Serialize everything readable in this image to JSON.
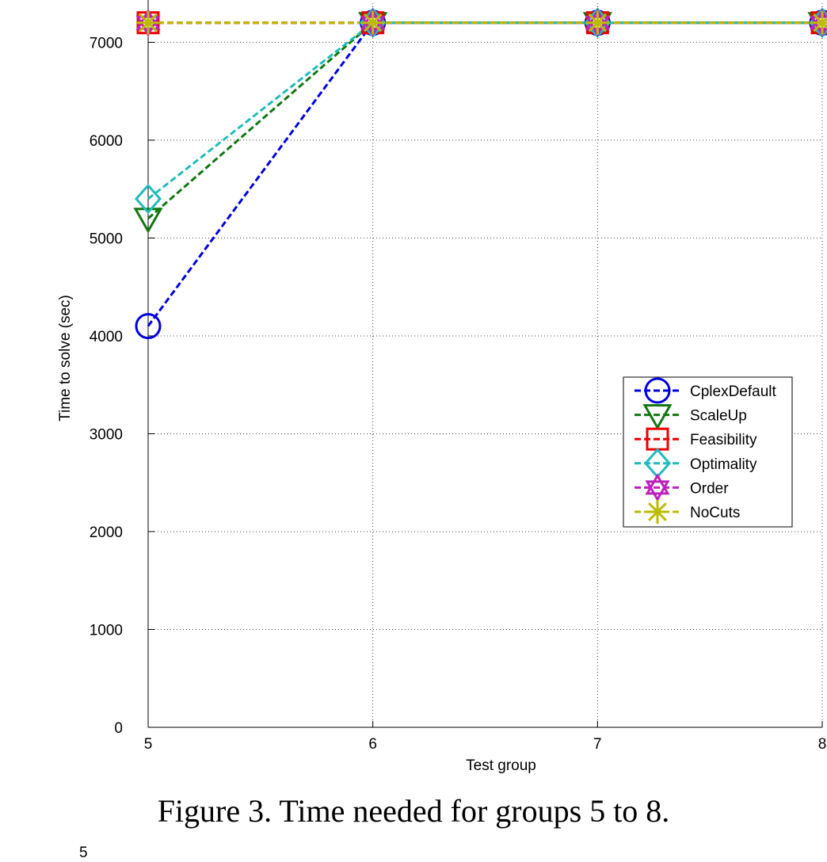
{
  "caption": "Figure 3. Time needed for groups 5 to 8.",
  "next_figure_tick": "5",
  "chart_data": {
    "type": "line",
    "title": "",
    "xlabel": "Test group",
    "ylabel": "Time to solve (sec)",
    "x": [
      5,
      6,
      7,
      8
    ],
    "xlim": [
      5,
      8
    ],
    "ylim": [
      0,
      7400
    ],
    "xticks": [
      "5",
      "6",
      "7",
      "8"
    ],
    "yticks": [
      "0",
      "1000",
      "2000",
      "3000",
      "4000",
      "5000",
      "6000",
      "7000"
    ],
    "grid": true,
    "legend_position": "right",
    "series": [
      {
        "name": "CplexDefault",
        "values": [
          4100,
          7200,
          7200,
          7200
        ],
        "color": "#0000dd",
        "marker": "circle"
      },
      {
        "name": "ScaleUp",
        "values": [
          5200,
          7200,
          7200,
          7200
        ],
        "color": "#117711",
        "marker": "triangle-down"
      },
      {
        "name": "Feasibility",
        "values": [
          7200,
          7200,
          7200,
          7200
        ],
        "color": "#ee0000",
        "marker": "square"
      },
      {
        "name": "Optimality",
        "values": [
          5400,
          7200,
          7200,
          7200
        ],
        "color": "#22bbbb",
        "marker": "diamond"
      },
      {
        "name": "Order",
        "values": [
          7200,
          7200,
          7200,
          7200
        ],
        "color": "#bb22bb",
        "marker": "hexagram"
      },
      {
        "name": "NoCuts",
        "values": [
          7200,
          7200,
          7200,
          7200
        ],
        "color": "#bbbb00",
        "marker": "asterisk"
      }
    ]
  }
}
